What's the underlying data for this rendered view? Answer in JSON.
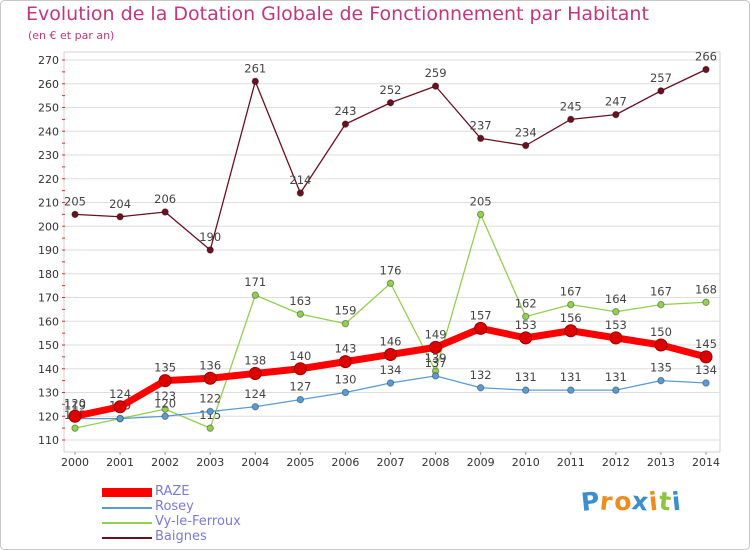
{
  "title": "Evolution de la Dotation Globale de Fonctionnement par Habitant",
  "subtitle": "(en € et par an)",
  "logo": {
    "text": "Proxiti",
    "letters": [
      "P",
      "r",
      "o",
      "x",
      "i",
      "t",
      "i"
    ],
    "colors": [
      "#3b8fd1",
      "#f08b1d",
      "#f08b1d",
      "#3b8fd1",
      "#f08b1d",
      "#8cc63f",
      "#3b8fd1"
    ]
  },
  "chart_data": {
    "type": "line",
    "title": "Evolution de la Dotation Globale de Fonctionnement par Habitant",
    "subtitle": "(en € et par an)",
    "xlabel": "",
    "ylabel": "",
    "x": [
      "2000",
      "2001",
      "2002",
      "2003",
      "2004",
      "2005",
      "2006",
      "2007",
      "2008",
      "2009",
      "2010",
      "2011",
      "2012",
      "2013",
      "2014"
    ],
    "yticks": [
      110,
      120,
      130,
      140,
      150,
      160,
      170,
      180,
      190,
      200,
      210,
      220,
      230,
      240,
      250,
      260,
      270
    ],
    "ylim": [
      110,
      270
    ],
    "grid": "horizontal",
    "legend_position": "bottom-left",
    "series": [
      {
        "name": "Baignes",
        "color": "#6b1020",
        "values": [
          205,
          204,
          206,
          190,
          261,
          214,
          243,
          252,
          259,
          237,
          234,
          245,
          247,
          257,
          266
        ]
      },
      {
        "name": "Vy-le-Ferroux",
        "color": "#92d050",
        "values": [
          115,
          119,
          123,
          115,
          171,
          163,
          159,
          176,
          139,
          205,
          162,
          167,
          164,
          167,
          168
        ]
      },
      {
        "name": "Rosey",
        "color": "#5b9bd5",
        "values": [
          119,
          119,
          120,
          122,
          124,
          127,
          130,
          134,
          137,
          132,
          131,
          131,
          131,
          135,
          134
        ]
      },
      {
        "name": "RAZE",
        "color": "#ff0000",
        "values": [
          120,
          124,
          135,
          136,
          138,
          140,
          143,
          146,
          149,
          157,
          153,
          156,
          153,
          150,
          145
        ]
      }
    ],
    "legend": [
      "RAZE",
      "Rosey",
      "Vy-le-Ferroux",
      "Baignes"
    ]
  }
}
